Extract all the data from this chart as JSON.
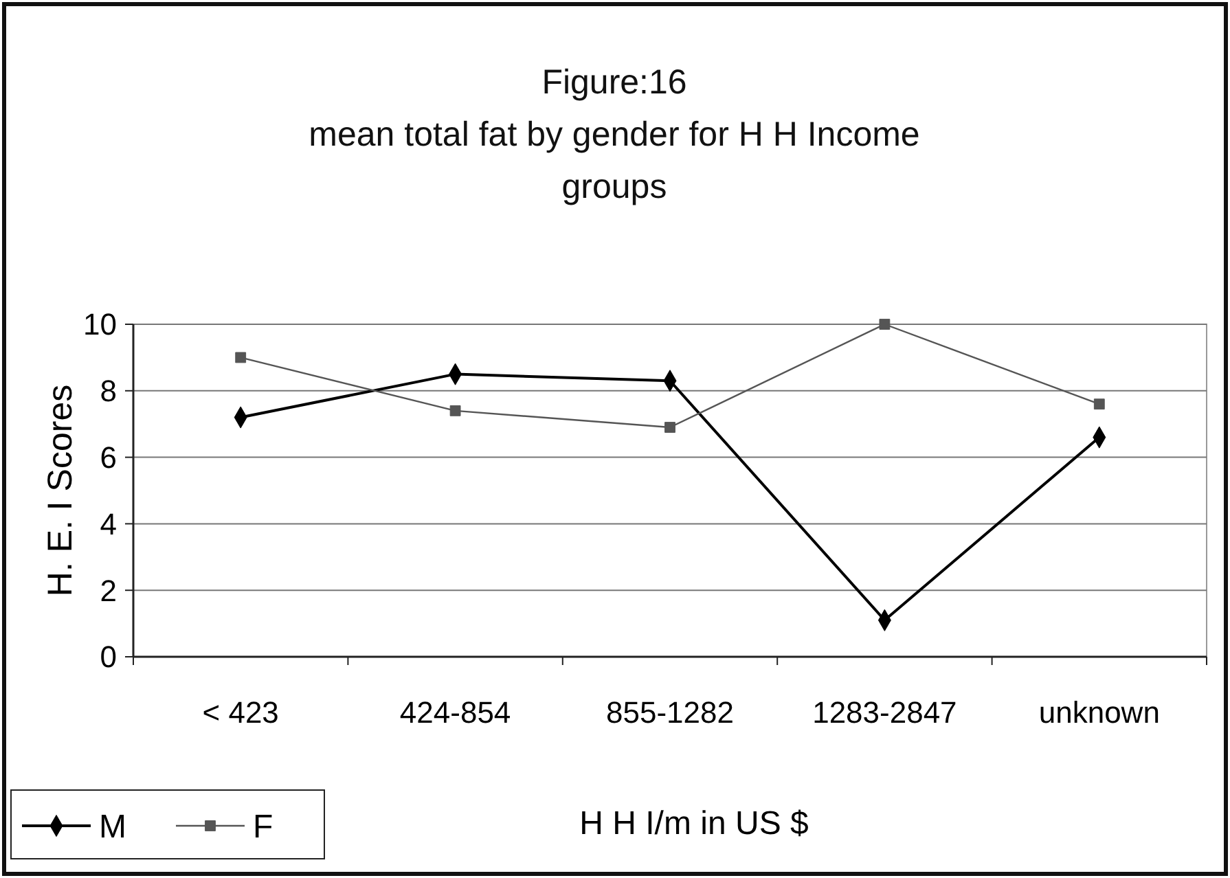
{
  "chart_data": {
    "type": "line",
    "title": "Figure:16\nmean total fat by gender for H H Income\ngroups",
    "xlabel": "H H I/m in US $",
    "ylabel": "H. E. I  Scores",
    "categories": [
      "< 423",
      "424-854",
      "855-1282",
      "1283-2847",
      "unknown"
    ],
    "series": [
      {
        "name": "M",
        "color": "#000000",
        "marker": "diamond",
        "values": [
          7.2,
          8.5,
          8.3,
          1.1,
          6.6
        ]
      },
      {
        "name": "F",
        "color": "#555555",
        "marker": "square",
        "values": [
          9.0,
          7.4,
          6.9,
          10.0,
          7.6
        ]
      }
    ],
    "ylim": [
      0,
      10
    ],
    "yticks": [
      0,
      2,
      4,
      6,
      8,
      10
    ],
    "grid": "y",
    "legend": "bottom left"
  }
}
